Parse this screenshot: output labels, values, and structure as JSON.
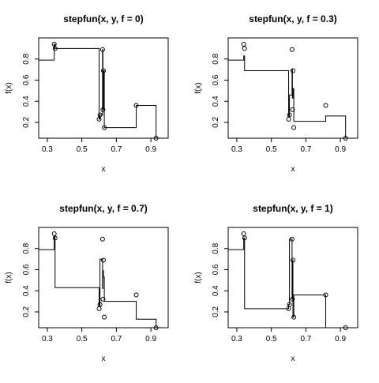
{
  "chart_data": [
    {
      "type": "line",
      "title": "stepfun(x, y, f = 0)",
      "xlabel": "x",
      "ylabel": "f(x)",
      "xlim": [
        0.25,
        1.0
      ],
      "ylim": [
        0.05,
        1.0
      ],
      "xticks": [
        "0.3",
        "0.5",
        "0.7",
        "0.9"
      ],
      "yticks": [
        "0.2",
        "0.4",
        "0.6",
        "0.8"
      ],
      "points": {
        "x": [
          0.34,
          0.345,
          0.6,
          0.605,
          0.62,
          0.622,
          0.625,
          0.63,
          0.815,
          0.93
        ],
        "y": [
          0.94,
          0.9,
          0.23,
          0.27,
          0.89,
          0.32,
          0.69,
          0.15,
          0.36,
          0.05
        ]
      },
      "steps": [
        [
          0.25,
          0.79
        ],
        [
          0.34,
          0.94
        ],
        [
          0.345,
          0.9
        ],
        [
          0.6,
          0.23
        ],
        [
          0.605,
          0.27
        ],
        [
          0.62,
          0.89
        ],
        [
          0.622,
          0.32
        ],
        [
          0.625,
          0.69
        ],
        [
          0.63,
          0.15
        ],
        [
          0.815,
          0.36
        ],
        [
          0.93,
          0.05
        ],
        [
          1.0,
          0.05
        ]
      ]
    },
    {
      "type": "line",
      "title": "stepfun(x, y, f = 0.3)",
      "xlabel": "x",
      "ylabel": "f(x)",
      "xlim": [
        0.25,
        1.0
      ],
      "ylim": [
        0.05,
        1.0
      ],
      "xticks": [
        "0.3",
        "0.5",
        "0.7",
        "0.9"
      ],
      "yticks": [
        "0.2",
        "0.4",
        "0.6",
        "0.8"
      ],
      "points": {
        "x": [
          0.34,
          0.345,
          0.6,
          0.605,
          0.62,
          0.622,
          0.625,
          0.63,
          0.815,
          0.93
        ],
        "y": [
          0.94,
          0.9,
          0.23,
          0.27,
          0.89,
          0.32,
          0.69,
          0.15,
          0.36,
          0.05
        ]
      },
      "steps": [
        [
          0.25,
          0.79
        ],
        [
          0.34,
          0.83
        ],
        [
          0.345,
          0.69
        ],
        [
          0.6,
          0.26
        ],
        [
          0.605,
          0.46
        ],
        [
          0.62,
          0.7
        ],
        [
          0.622,
          0.43
        ],
        [
          0.625,
          0.52
        ],
        [
          0.63,
          0.21
        ],
        [
          0.815,
          0.26
        ],
        [
          0.93,
          0.05
        ],
        [
          1.0,
          0.05
        ]
      ]
    },
    {
      "type": "line",
      "title": "stepfun(x, y, f = 0.7)",
      "xlabel": "x",
      "ylabel": "f(x)",
      "xlim": [
        0.25,
        1.0
      ],
      "ylim": [
        0.05,
        1.0
      ],
      "xticks": [
        "0.3",
        "0.5",
        "0.7",
        "0.9"
      ],
      "yticks": [
        "0.2",
        "0.4",
        "0.6",
        "0.8"
      ],
      "points": {
        "x": [
          0.34,
          0.345,
          0.6,
          0.605,
          0.62,
          0.622,
          0.625,
          0.63,
          0.815,
          0.93
        ],
        "y": [
          0.94,
          0.9,
          0.23,
          0.27,
          0.89,
          0.32,
          0.69,
          0.15,
          0.36,
          0.05
        ]
      },
      "steps": [
        [
          0.25,
          0.79
        ],
        [
          0.34,
          0.91
        ],
        [
          0.345,
          0.43
        ],
        [
          0.6,
          0.26
        ],
        [
          0.605,
          0.7
        ],
        [
          0.62,
          0.42
        ],
        [
          0.622,
          0.59
        ],
        [
          0.625,
          0.53
        ],
        [
          0.63,
          0.3
        ],
        [
          0.815,
          0.13
        ],
        [
          0.93,
          0.05
        ],
        [
          1.0,
          0.05
        ]
      ]
    },
    {
      "type": "line",
      "title": "stepfun(x, y, f = 1)",
      "xlabel": "x",
      "ylabel": "f(x)",
      "xlim": [
        0.25,
        1.0
      ],
      "ylim": [
        0.05,
        1.0
      ],
      "xticks": [
        "0.3",
        "0.5",
        "0.7",
        "0.9"
      ],
      "yticks": [
        "0.2",
        "0.4",
        "0.6",
        "0.8"
      ],
      "points": {
        "x": [
          0.34,
          0.345,
          0.6,
          0.605,
          0.62,
          0.622,
          0.625,
          0.63,
          0.815,
          0.93
        ],
        "y": [
          0.94,
          0.9,
          0.23,
          0.27,
          0.89,
          0.32,
          0.69,
          0.15,
          0.36,
          0.05
        ]
      },
      "steps": [
        [
          0.25,
          0.79
        ],
        [
          0.34,
          0.9
        ],
        [
          0.345,
          0.23
        ],
        [
          0.6,
          0.27
        ],
        [
          0.605,
          0.89
        ],
        [
          0.62,
          0.32
        ],
        [
          0.622,
          0.69
        ],
        [
          0.625,
          0.15
        ],
        [
          0.63,
          0.36
        ],
        [
          0.815,
          0.05
        ],
        [
          0.93,
          0.05
        ],
        [
          1.0,
          0.05
        ]
      ]
    }
  ]
}
